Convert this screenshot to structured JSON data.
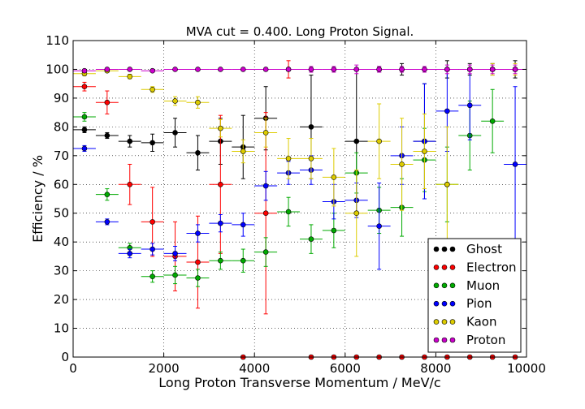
{
  "chart_data": {
    "type": "scatter",
    "title": "MVA cut = 0.400. Long Proton Signal.",
    "xlabel": "Long Proton Transverse Momentum / MeV/c",
    "ylabel": "Efficiency / %",
    "xlim": [
      0,
      10000
    ],
    "ylim": [
      0,
      110
    ],
    "xticks": [
      0,
      2000,
      4000,
      6000,
      8000,
      10000
    ],
    "yticks": [
      0,
      10,
      20,
      30,
      40,
      50,
      60,
      70,
      80,
      90,
      100,
      110
    ],
    "grid": true,
    "legend_position": "bottom-right",
    "bin_half_width": 250,
    "series": [
      {
        "name": "Ghost",
        "color": "#000000",
        "points": [
          {
            "x": 250,
            "y": 79,
            "err": 1
          },
          {
            "x": 750,
            "y": 77,
            "err": 1
          },
          {
            "x": 1250,
            "y": 75,
            "err": 2
          },
          {
            "x": 1750,
            "y": 74.5,
            "err": 3
          },
          {
            "x": 2250,
            "y": 78,
            "err": 5
          },
          {
            "x": 2750,
            "y": 71,
            "err": 6
          },
          {
            "x": 3250,
            "y": 75,
            "err": 8
          },
          {
            "x": 3750,
            "y": 73,
            "err": 11
          },
          {
            "x": 4250,
            "y": 83,
            "err": 11
          },
          {
            "x": 5250,
            "y": 80,
            "err": 18
          },
          {
            "x": 6250,
            "y": 75,
            "err": 25
          },
          {
            "x": 6750,
            "y": 100,
            "err": 1
          },
          {
            "x": 7250,
            "y": 100,
            "err": 2
          },
          {
            "x": 7750,
            "y": 75,
            "err": 20
          },
          {
            "x": 8250,
            "y": 100,
            "err": 3
          },
          {
            "x": 8750,
            "y": 100,
            "err": 2
          },
          {
            "x": 9250,
            "y": 100,
            "err": 2
          },
          {
            "x": 9750,
            "y": 100,
            "err": 3
          }
        ]
      },
      {
        "name": "Electron",
        "color": "#ff0000",
        "points": [
          {
            "x": 250,
            "y": 94,
            "err": 1.5
          },
          {
            "x": 750,
            "y": 88.5,
            "err": 4
          },
          {
            "x": 1250,
            "y": 60,
            "err": 7
          },
          {
            "x": 1750,
            "y": 47,
            "err": 12
          },
          {
            "x": 2250,
            "y": 35,
            "err": 12
          },
          {
            "x": 2750,
            "y": 33,
            "err": 16
          },
          {
            "x": 3250,
            "y": 60,
            "err": 24
          },
          {
            "x": 3750,
            "y": 0,
            "err": 0
          },
          {
            "x": 4250,
            "y": 50,
            "err": 35
          },
          {
            "x": 4750,
            "y": 100,
            "err": 3
          },
          {
            "x": 5250,
            "y": 0,
            "err": 0
          },
          {
            "x": 5750,
            "y": 0,
            "err": 0
          },
          {
            "x": 6250,
            "y": 0,
            "err": 0
          },
          {
            "x": 6750,
            "y": 0,
            "err": 0
          },
          {
            "x": 7250,
            "y": 0,
            "err": 0
          },
          {
            "x": 7750,
            "y": 0,
            "err": 0
          },
          {
            "x": 8250,
            "y": 0,
            "err": 0
          },
          {
            "x": 8750,
            "y": 0,
            "err": 0
          },
          {
            "x": 9250,
            "y": 0,
            "err": 0
          },
          {
            "x": 9750,
            "y": 0,
            "err": 0
          }
        ]
      },
      {
        "name": "Muon",
        "color": "#00aa00",
        "points": [
          {
            "x": 250,
            "y": 83.5,
            "err": 1.5
          },
          {
            "x": 750,
            "y": 56.5,
            "err": 2
          },
          {
            "x": 1250,
            "y": 38,
            "err": 1.5
          },
          {
            "x": 1750,
            "y": 28,
            "err": 2
          },
          {
            "x": 2250,
            "y": 28.5,
            "err": 3
          },
          {
            "x": 2750,
            "y": 27.5,
            "err": 3
          },
          {
            "x": 3250,
            "y": 33.5,
            "err": 3
          },
          {
            "x": 3750,
            "y": 33.5,
            "err": 4
          },
          {
            "x": 4250,
            "y": 36.5,
            "err": 5
          },
          {
            "x": 4750,
            "y": 50.5,
            "err": 5
          },
          {
            "x": 5250,
            "y": 41,
            "err": 5
          },
          {
            "x": 5750,
            "y": 44,
            "err": 6
          },
          {
            "x": 6250,
            "y": 64,
            "err": 7
          },
          {
            "x": 6750,
            "y": 51,
            "err": 8
          },
          {
            "x": 7250,
            "y": 52,
            "err": 10
          },
          {
            "x": 7750,
            "y": 68.5,
            "err": 11
          },
          {
            "x": 8250,
            "y": 60,
            "err": 13
          },
          {
            "x": 8750,
            "y": 77,
            "err": 12
          },
          {
            "x": 9250,
            "y": 82,
            "err": 11
          }
        ]
      },
      {
        "name": "Pion",
        "color": "#0000ff",
        "points": [
          {
            "x": 250,
            "y": 72.5,
            "err": 1
          },
          {
            "x": 750,
            "y": 47,
            "err": 1
          },
          {
            "x": 1250,
            "y": 36,
            "err": 1.5
          },
          {
            "x": 1750,
            "y": 37.5,
            "err": 2
          },
          {
            "x": 2250,
            "y": 36,
            "err": 2.5
          },
          {
            "x": 2750,
            "y": 43,
            "err": 3
          },
          {
            "x": 3250,
            "y": 46.5,
            "err": 3
          },
          {
            "x": 3750,
            "y": 46,
            "err": 4
          },
          {
            "x": 4250,
            "y": 59.5,
            "err": 5
          },
          {
            "x": 4750,
            "y": 64,
            "err": 4
          },
          {
            "x": 5250,
            "y": 65,
            "err": 5
          },
          {
            "x": 5750,
            "y": 54,
            "err": 6
          },
          {
            "x": 6250,
            "y": 54.5,
            "err": 6
          },
          {
            "x": 6750,
            "y": 45.5,
            "err": 15
          },
          {
            "x": 7250,
            "y": 70,
            "err": 10
          },
          {
            "x": 7750,
            "y": 75,
            "err": 20
          },
          {
            "x": 8250,
            "y": 85.5,
            "err": 14
          },
          {
            "x": 8750,
            "y": 87.5,
            "err": 12
          },
          {
            "x": 9750,
            "y": 67,
            "err": 27
          }
        ]
      },
      {
        "name": "Kaon",
        "color": "#ddcc00",
        "points": [
          {
            "x": 250,
            "y": 98.5,
            "err": 0.7
          },
          {
            "x": 750,
            "y": 99.5,
            "err": 0.5
          },
          {
            "x": 1250,
            "y": 97.5,
            "err": 0.8
          },
          {
            "x": 1750,
            "y": 93,
            "err": 1
          },
          {
            "x": 2250,
            "y": 89,
            "err": 1.5
          },
          {
            "x": 2750,
            "y": 88.5,
            "err": 2
          },
          {
            "x": 3250,
            "y": 79.5,
            "err": 3
          },
          {
            "x": 3750,
            "y": 71.5,
            "err": 4
          },
          {
            "x": 4250,
            "y": 78,
            "err": 5
          },
          {
            "x": 4750,
            "y": 69,
            "err": 7
          },
          {
            "x": 5250,
            "y": 69,
            "err": 7
          },
          {
            "x": 5750,
            "y": 62.5,
            "err": 10
          },
          {
            "x": 6250,
            "y": 50,
            "err": 15
          },
          {
            "x": 6750,
            "y": 75,
            "err": 13
          },
          {
            "x": 7250,
            "y": 67,
            "err": 16
          },
          {
            "x": 7750,
            "y": 71.5,
            "err": 13
          },
          {
            "x": 8250,
            "y": 60,
            "err": 20
          },
          {
            "x": 9250,
            "y": 100,
            "err": 2
          },
          {
            "x": 9750,
            "y": 100,
            "err": 2
          }
        ]
      },
      {
        "name": "Proton",
        "color": "#cc00cc",
        "points": [
          {
            "x": 250,
            "y": 99.5,
            "err": 0.3
          },
          {
            "x": 750,
            "y": 100,
            "err": 0.3
          },
          {
            "x": 1250,
            "y": 100,
            "err": 0.3
          },
          {
            "x": 1750,
            "y": 99.5,
            "err": 0.3
          },
          {
            "x": 2250,
            "y": 100,
            "err": 0.3
          },
          {
            "x": 2750,
            "y": 100,
            "err": 0.3
          },
          {
            "x": 3250,
            "y": 100,
            "err": 0.3
          },
          {
            "x": 3750,
            "y": 100,
            "err": 0.3
          },
          {
            "x": 4250,
            "y": 100,
            "err": 0.3
          },
          {
            "x": 4750,
            "y": 100,
            "err": 0.5
          },
          {
            "x": 5250,
            "y": 100,
            "err": 1
          },
          {
            "x": 5750,
            "y": 100,
            "err": 1
          },
          {
            "x": 6250,
            "y": 100,
            "err": 1.5
          },
          {
            "x": 6750,
            "y": 100,
            "err": 1
          },
          {
            "x": 7250,
            "y": 100,
            "err": 1
          },
          {
            "x": 7750,
            "y": 100,
            "err": 1
          },
          {
            "x": 8250,
            "y": 100,
            "err": 1.5
          },
          {
            "x": 8750,
            "y": 100,
            "err": 1.5
          },
          {
            "x": 9250,
            "y": 100,
            "err": 1.5
          },
          {
            "x": 9750,
            "y": 100,
            "err": 1.5
          }
        ]
      }
    ]
  }
}
